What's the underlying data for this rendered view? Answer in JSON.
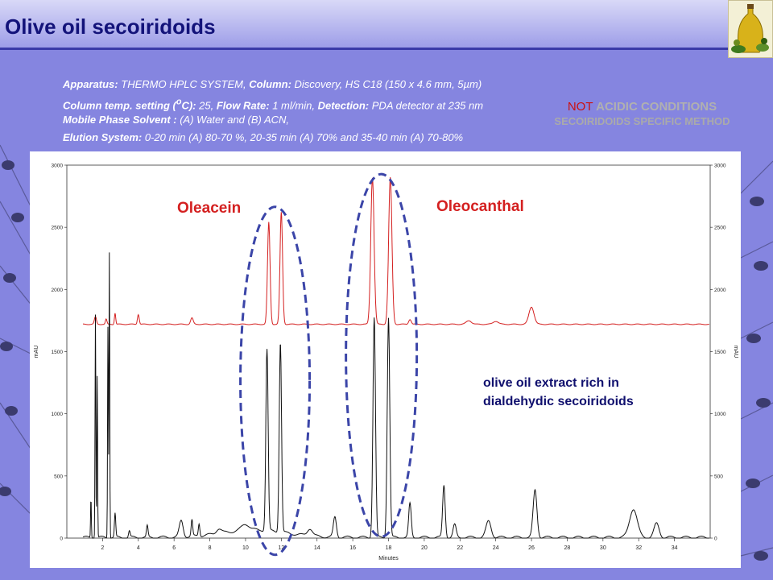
{
  "slide": {
    "title": "Olive oil secoiridoids"
  },
  "info": {
    "apparatus_label": "Apparatus",
    "apparatus_value": "THERMO HPLC SYSTEM,",
    "column_label": "Column:",
    "column_value": "Discovery, HS C18 (150 x 4.6 mm, 5µm)",
    "temp_label": "Column temp. setting (",
    "temp_unit_o": "o",
    "temp_unit_rest": "C):",
    "temp_value": "25,",
    "flow_label": "Flow Rate",
    "flow_value": "1 ml/min,",
    "detection_label": "Detection:",
    "detection_value": "PDA detector at 235 nm",
    "solvent_label": "Mobile Phase Solvent :",
    "solvent_value": "(A) Water and (B) ACN,",
    "elution_label": "Elution System:",
    "elution_value": "0-20 min (A) 80-70 %, 20-35 min (A) 70% and 35-40 min (A) 70-80%"
  },
  "note": {
    "not": "NOT",
    "rest": "ACIDIC CONDITIONS",
    "line2": "SECOIRIDOIDS SPECIFIC METHOD"
  },
  "chart_data": {
    "type": "line",
    "xlabel": "Minutes",
    "ylabel": "mAU",
    "xlim": [
      0,
      36
    ],
    "ylim": [
      0,
      3000
    ],
    "x_ticks": [
      2,
      4,
      6,
      8,
      10,
      12,
      14,
      16,
      18,
      20,
      22,
      24,
      26,
      28,
      30,
      32,
      34
    ],
    "y_ticks": [
      0,
      500,
      1000,
      1500,
      2000,
      2500,
      3000
    ],
    "series": [
      {
        "color": "#d42020",
        "baseline": 1720,
        "peaks": [
          {
            "x": 1.6,
            "h": 60,
            "w": 0.08
          },
          {
            "x": 2.2,
            "h": 40,
            "w": 0.06
          },
          {
            "x": 2.7,
            "h": 90,
            "w": 0.05
          },
          {
            "x": 4.0,
            "h": 80,
            "w": 0.07
          },
          {
            "x": 7.0,
            "h": 50,
            "w": 0.1
          },
          {
            "x": 11.3,
            "h": 820,
            "w": 0.1
          },
          {
            "x": 12.0,
            "h": 900,
            "w": 0.1
          },
          {
            "x": 17.1,
            "h": 1180,
            "w": 0.13
          },
          {
            "x": 18.1,
            "h": 1180,
            "w": 0.13
          },
          {
            "x": 19.2,
            "h": 40,
            "w": 0.1
          },
          {
            "x": 22.5,
            "h": 30,
            "w": 0.2
          },
          {
            "x": 24.0,
            "h": 25,
            "w": 0.2
          },
          {
            "x": 26.0,
            "h": 140,
            "w": 0.2
          }
        ]
      },
      {
        "color": "#111111",
        "baseline": 0,
        "peaks": [
          {
            "x": 1.35,
            "h": 320,
            "w": 0.03
          },
          {
            "x": 1.6,
            "h": 1800,
            "w": 0.03
          },
          {
            "x": 1.7,
            "h": 1300,
            "w": 0.03
          },
          {
            "x": 2.3,
            "h": 1700,
            "w": 0.03
          },
          {
            "x": 2.38,
            "h": 2300,
            "w": 0.03
          },
          {
            "x": 2.7,
            "h": 190,
            "w": 0.05
          },
          {
            "x": 3.5,
            "h": 50,
            "w": 0.06
          },
          {
            "x": 4.5,
            "h": 90,
            "w": 0.06
          },
          {
            "x": 6.4,
            "h": 130,
            "w": 0.15
          },
          {
            "x": 7.0,
            "h": 130,
            "w": 0.06
          },
          {
            "x": 7.4,
            "h": 100,
            "w": 0.06
          },
          {
            "x": 8.5,
            "h": 40,
            "w": 0.2
          },
          {
            "x": 10.0,
            "h": 50,
            "w": 0.3
          },
          {
            "x": 11.2,
            "h": 1460,
            "w": 0.09
          },
          {
            "x": 11.95,
            "h": 1530,
            "w": 0.09
          },
          {
            "x": 13.6,
            "h": 60,
            "w": 0.2
          },
          {
            "x": 15.0,
            "h": 160,
            "w": 0.12
          },
          {
            "x": 17.2,
            "h": 1770,
            "w": 0.1
          },
          {
            "x": 18.0,
            "h": 1770,
            "w": 0.1
          },
          {
            "x": 19.2,
            "h": 270,
            "w": 0.1
          },
          {
            "x": 21.1,
            "h": 420,
            "w": 0.1
          },
          {
            "x": 21.7,
            "h": 100,
            "w": 0.12
          },
          {
            "x": 23.6,
            "h": 130,
            "w": 0.2
          },
          {
            "x": 26.2,
            "h": 380,
            "w": 0.15
          },
          {
            "x": 31.7,
            "h": 230,
            "w": 0.3
          },
          {
            "x": 33.0,
            "h": 110,
            "w": 0.2
          }
        ]
      }
    ],
    "annotations": [
      {
        "text": "Oleacein",
        "color": "#d42020"
      },
      {
        "text": "Oleocanthal",
        "color": "#d42020"
      },
      {
        "text": "olive oil extract rich in",
        "color": "#10106e"
      },
      {
        "text": "dialdehydic  secoiridoids",
        "color": "#10106e"
      }
    ]
  }
}
